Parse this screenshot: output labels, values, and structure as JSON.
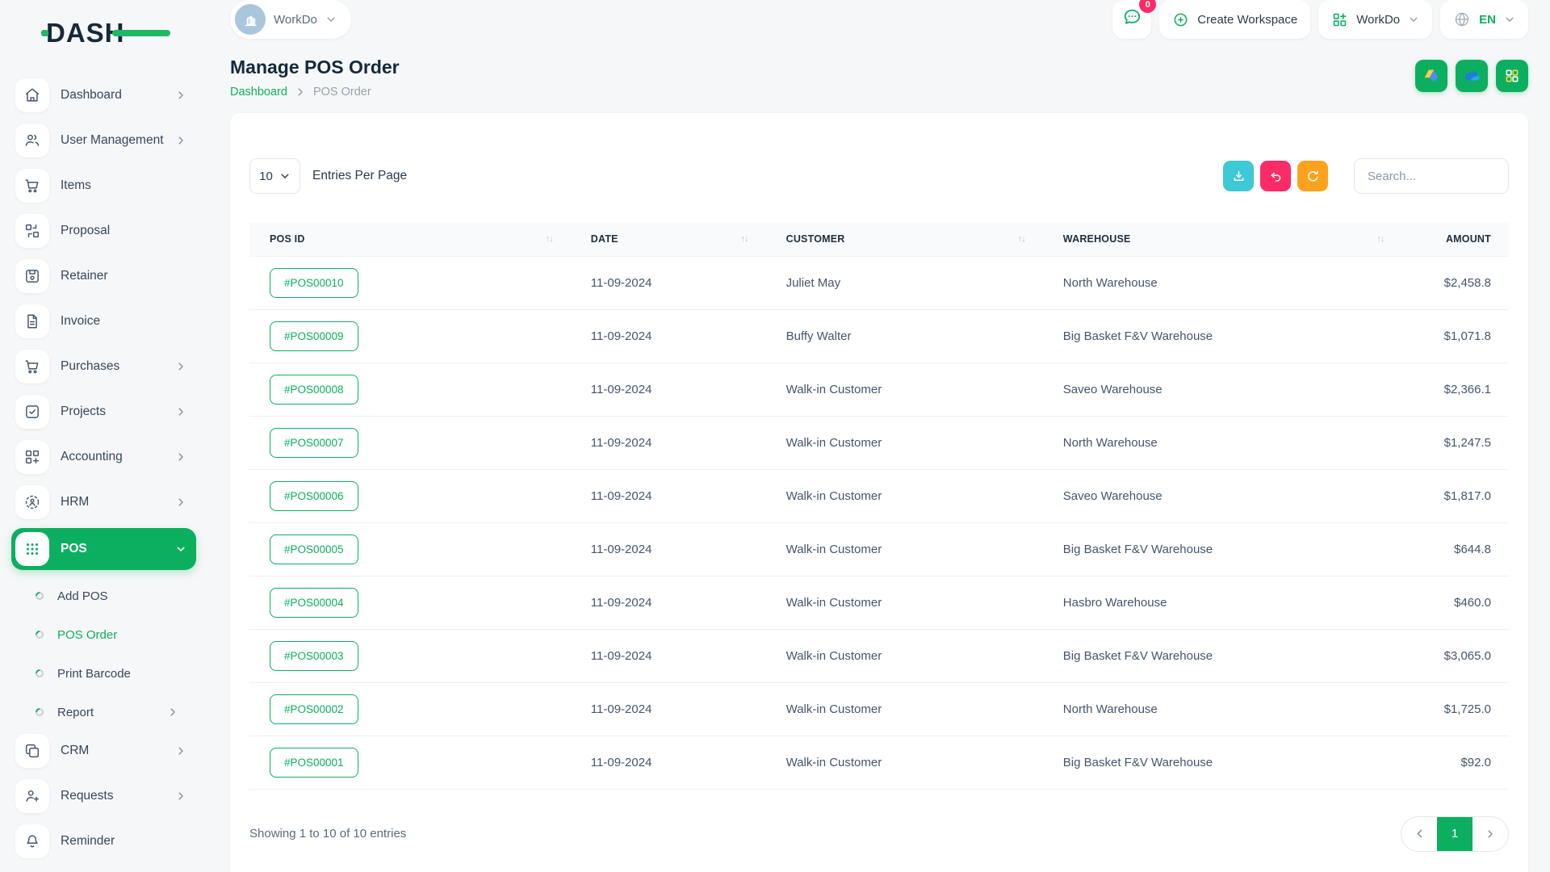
{
  "brand": {
    "logo_text": "DASH"
  },
  "colors": {
    "primary_green": "#0CAF60",
    "teal": "#3EC9D6",
    "pink": "#FB2B67",
    "orange": "#FFA21D",
    "navy": "#16283C"
  },
  "topbar": {
    "workspace_selector": {
      "label": "WorkDo",
      "icon": "building-icon"
    },
    "messages": {
      "icon": "chat-icon",
      "badge_count": "0"
    },
    "create_workspace": {
      "label": "Create Workspace",
      "icon": "plus-circle-icon"
    },
    "workspace_menu": {
      "label": "WorkDo",
      "icon": "grid-plus-icon"
    },
    "language": {
      "code": "EN",
      "icon": "globe-icon"
    }
  },
  "sidebar": {
    "items": [
      {
        "id": "dashboard",
        "label": "Dashboard",
        "icon": "home-icon",
        "chevron": true
      },
      {
        "id": "user-management",
        "label": "User Management",
        "icon": "users-icon",
        "chevron": true
      },
      {
        "id": "items",
        "label": "Items",
        "icon": "cart-icon",
        "chevron": false
      },
      {
        "id": "proposal",
        "label": "Proposal",
        "icon": "proposal-icon",
        "chevron": false
      },
      {
        "id": "retainer",
        "label": "Retainer",
        "icon": "save-icon",
        "chevron": false
      },
      {
        "id": "invoice",
        "label": "Invoice",
        "icon": "invoice-icon",
        "chevron": false
      },
      {
        "id": "purchases",
        "label": "Purchases",
        "icon": "cart-icon",
        "chevron": true
      },
      {
        "id": "projects",
        "label": "Projects",
        "icon": "check-square-icon",
        "chevron": true
      },
      {
        "id": "accounting",
        "label": "Accounting",
        "icon": "grid-plus-menu-icon",
        "chevron": true
      },
      {
        "id": "hrm",
        "label": "HRM",
        "icon": "scan-user-icon",
        "chevron": true
      },
      {
        "id": "pos",
        "label": "POS",
        "icon": "dots-grid-icon",
        "chevron": true,
        "active": true,
        "expanded": true
      },
      {
        "id": "add-pos",
        "label": "Add POS",
        "sub": true
      },
      {
        "id": "pos-order",
        "label": "POS Order",
        "sub": true,
        "active": true
      },
      {
        "id": "print-barcode",
        "label": "Print Barcode",
        "sub": true
      },
      {
        "id": "report",
        "label": "Report",
        "sub": true,
        "chevron": true
      },
      {
        "id": "crm",
        "label": "CRM",
        "icon": "copy-icon",
        "chevron": true
      },
      {
        "id": "requests",
        "label": "Requests",
        "icon": "user-plus-icon",
        "chevron": true
      },
      {
        "id": "reminder",
        "label": "Reminder",
        "icon": "bell-icon",
        "chevron": false
      }
    ]
  },
  "page": {
    "title": "Manage POS Order",
    "breadcrumb": [
      {
        "label": "Dashboard"
      },
      {
        "label": "POS Order"
      }
    ],
    "quick_actions": [
      {
        "icon": "gdrive-icon"
      },
      {
        "icon": "onedrive-icon"
      },
      {
        "icon": "grid4-icon"
      }
    ]
  },
  "toolbar": {
    "entries_per_page": "10",
    "entries_label": "Entries Per Page",
    "buttons": [
      {
        "id": "export",
        "icon": "download-icon",
        "color": "teal"
      },
      {
        "id": "back",
        "icon": "undo-icon",
        "color": "pink"
      },
      {
        "id": "refresh",
        "icon": "refresh-icon",
        "color": "orange"
      }
    ],
    "search_placeholder": "Search..."
  },
  "table": {
    "columns": [
      "POS ID",
      "DATE",
      "CUSTOMER",
      "WAREHOUSE",
      "AMOUNT"
    ],
    "rows": [
      {
        "pos_id": "#POS00010",
        "date": "11-09-2024",
        "customer": "Juliet May",
        "warehouse": "North Warehouse",
        "amount": "$2,458.8"
      },
      {
        "pos_id": "#POS00009",
        "date": "11-09-2024",
        "customer": "Buffy Walter",
        "warehouse": "Big Basket F&V Warehouse",
        "amount": "$1,071.8"
      },
      {
        "pos_id": "#POS00008",
        "date": "11-09-2024",
        "customer": "Walk-in Customer",
        "warehouse": "Saveo Warehouse",
        "amount": "$2,366.1"
      },
      {
        "pos_id": "#POS00007",
        "date": "11-09-2024",
        "customer": "Walk-in Customer",
        "warehouse": "North Warehouse",
        "amount": "$1,247.5"
      },
      {
        "pos_id": "#POS00006",
        "date": "11-09-2024",
        "customer": "Walk-in Customer",
        "warehouse": "Saveo Warehouse",
        "amount": "$1,817.0"
      },
      {
        "pos_id": "#POS00005",
        "date": "11-09-2024",
        "customer": "Walk-in Customer",
        "warehouse": "Big Basket F&V Warehouse",
        "amount": "$644.8"
      },
      {
        "pos_id": "#POS00004",
        "date": "11-09-2024",
        "customer": "Walk-in Customer",
        "warehouse": "Hasbro Warehouse",
        "amount": "$460.0"
      },
      {
        "pos_id": "#POS00003",
        "date": "11-09-2024",
        "customer": "Walk-in Customer",
        "warehouse": "Big Basket F&V Warehouse",
        "amount": "$3,065.0"
      },
      {
        "pos_id": "#POS00002",
        "date": "11-09-2024",
        "customer": "Walk-in Customer",
        "warehouse": "North Warehouse",
        "amount": "$1,725.0"
      },
      {
        "pos_id": "#POS00001",
        "date": "11-09-2024",
        "customer": "Walk-in Customer",
        "warehouse": "Big Basket F&V Warehouse",
        "amount": "$92.0"
      }
    ]
  },
  "footer": {
    "summary": "Showing 1 to 10 of 10 entries",
    "current_page": "1"
  }
}
